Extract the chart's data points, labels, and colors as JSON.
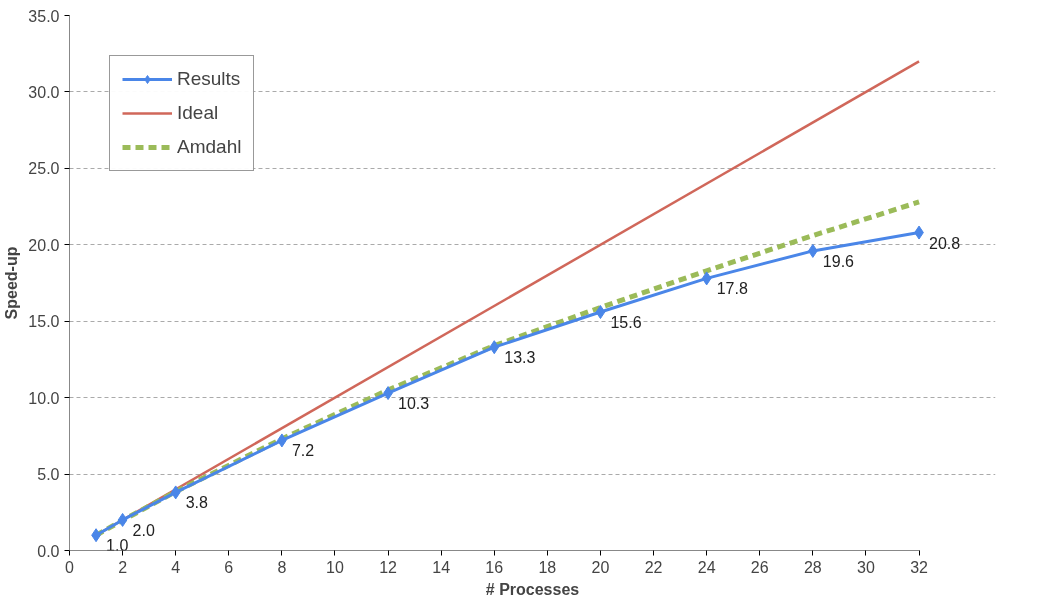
{
  "chart_data": {
    "type": "line",
    "xlabel": "# Processes",
    "ylabel": "Speed-up",
    "x": [
      1,
      2,
      4,
      8,
      12,
      16,
      20,
      24,
      28,
      32
    ],
    "series": [
      {
        "name": "Results",
        "color": "#4a86e8",
        "values": [
          1.0,
          2.0,
          3.8,
          7.2,
          10.3,
          13.3,
          15.6,
          17.8,
          19.6,
          20.8
        ],
        "marker": "diamond",
        "line_style": "solid",
        "value_labels": [
          "1.0",
          "2.0",
          "3.8",
          "7.2",
          "10.3",
          "13.3",
          "15.6",
          "17.8",
          "19.6",
          "20.8"
        ]
      },
      {
        "name": "Ideal",
        "color": "#d0675a",
        "x": [
          1,
          32
        ],
        "values": [
          1,
          32
        ],
        "marker": "none",
        "line_style": "solid"
      },
      {
        "name": "Amdahl",
        "color": "#9bbb59",
        "values": [
          1.0,
          1.97,
          3.85,
          7.3,
          10.5,
          13.4,
          15.9,
          18.3,
          20.6,
          22.8
        ],
        "marker": "none",
        "line_style": "dashed"
      }
    ],
    "xlim": [
      0,
      32
    ],
    "xticks": [
      0,
      2,
      4,
      6,
      8,
      10,
      12,
      14,
      16,
      18,
      20,
      22,
      24,
      26,
      28,
      30,
      32
    ],
    "ylim": [
      0,
      35
    ],
    "yticks": [
      {
        "value": 0,
        "label": "0.0"
      },
      {
        "value": 5,
        "label": "5.0"
      },
      {
        "value": 10,
        "label": "10.0"
      },
      {
        "value": 15,
        "label": "15.0"
      },
      {
        "value": 20,
        "label": "20.0"
      },
      {
        "value": 25,
        "label": "25.0"
      },
      {
        "value": 30,
        "label": "30.0"
      },
      {
        "value": 35,
        "label": "35.0"
      }
    ],
    "grid": "y",
    "legend": "top left"
  }
}
